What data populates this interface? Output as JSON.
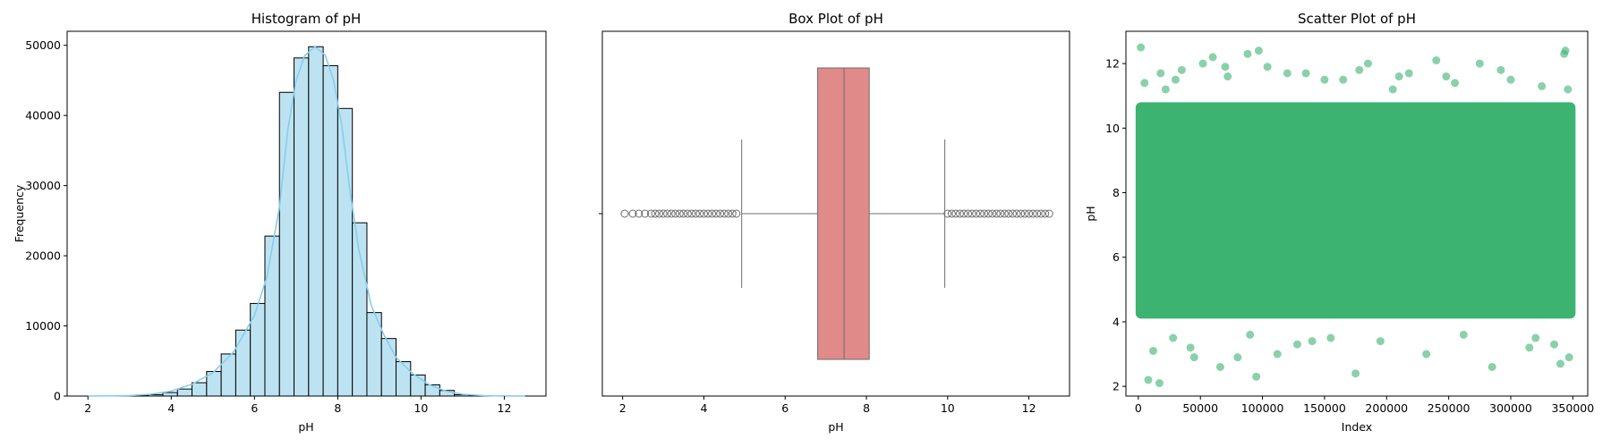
{
  "chart_data": [
    {
      "type": "bar",
      "title": "Histogram of pH",
      "xlabel": "pH",
      "ylabel": "Frequency",
      "xlim": [
        1.5,
        13.0
      ],
      "ylim": [
        0,
        52000
      ],
      "xticks": [
        "2",
        "4",
        "6",
        "8",
        "10",
        "12"
      ],
      "yticks": [
        "0",
        "10000",
        "20000",
        "30000",
        "40000",
        "50000"
      ],
      "bins": [
        {
          "x0": 2.05,
          "x1": 2.4,
          "value": 5
        },
        {
          "x0": 2.4,
          "x1": 2.75,
          "value": 10
        },
        {
          "x0": 2.75,
          "x1": 3.1,
          "value": 20
        },
        {
          "x0": 3.1,
          "x1": 3.45,
          "value": 60
        },
        {
          "x0": 3.45,
          "x1": 3.8,
          "value": 200
        },
        {
          "x0": 3.8,
          "x1": 4.15,
          "value": 500
        },
        {
          "x0": 4.15,
          "x1": 4.5,
          "value": 1000
        },
        {
          "x0": 4.5,
          "x1": 4.85,
          "value": 1900
        },
        {
          "x0": 4.85,
          "x1": 5.2,
          "value": 3500
        },
        {
          "x0": 5.2,
          "x1": 5.55,
          "value": 6000
        },
        {
          "x0": 5.55,
          "x1": 5.9,
          "value": 9400
        },
        {
          "x0": 5.9,
          "x1": 6.25,
          "value": 13200
        },
        {
          "x0": 6.25,
          "x1": 6.6,
          "value": 22800
        },
        {
          "x0": 6.6,
          "x1": 6.95,
          "value": 43300
        },
        {
          "x0": 6.95,
          "x1": 7.3,
          "value": 48200
        },
        {
          "x0": 7.3,
          "x1": 7.65,
          "value": 49800
        },
        {
          "x0": 7.65,
          "x1": 8.0,
          "value": 47100
        },
        {
          "x0": 8.0,
          "x1": 8.35,
          "value": 41000
        },
        {
          "x0": 8.35,
          "x1": 8.7,
          "value": 24700
        },
        {
          "x0": 8.7,
          "x1": 9.05,
          "value": 11900
        },
        {
          "x0": 9.05,
          "x1": 9.4,
          "value": 8200
        },
        {
          "x0": 9.4,
          "x1": 9.75,
          "value": 4900
        },
        {
          "x0": 9.75,
          "x1": 10.1,
          "value": 3000
        },
        {
          "x0": 10.1,
          "x1": 10.45,
          "value": 1600
        },
        {
          "x0": 10.45,
          "x1": 10.8,
          "value": 800
        },
        {
          "x0": 10.8,
          "x1": 11.15,
          "value": 200
        },
        {
          "x0": 11.15,
          "x1": 11.5,
          "value": 60
        },
        {
          "x0": 11.5,
          "x1": 11.85,
          "value": 20
        },
        {
          "x0": 11.85,
          "x1": 12.2,
          "value": 8
        },
        {
          "x0": 12.2,
          "x1": 12.55,
          "value": 4
        }
      ],
      "kde": [
        [
          2.0,
          0
        ],
        [
          3.0,
          60
        ],
        [
          3.5,
          250
        ],
        [
          4.0,
          700
        ],
        [
          4.5,
          1700
        ],
        [
          5.0,
          3300
        ],
        [
          5.5,
          6300
        ],
        [
          6.0,
          11500
        ],
        [
          6.3,
          17000
        ],
        [
          6.6,
          27000
        ],
        [
          6.8,
          38000
        ],
        [
          7.0,
          45000
        ],
        [
          7.2,
          48500
        ],
        [
          7.45,
          49800
        ],
        [
          7.7,
          48600
        ],
        [
          7.9,
          45000
        ],
        [
          8.1,
          38500
        ],
        [
          8.3,
          29000
        ],
        [
          8.5,
          21000
        ],
        [
          8.8,
          13000
        ],
        [
          9.1,
          8800
        ],
        [
          9.4,
          5500
        ],
        [
          9.8,
          3200
        ],
        [
          10.2,
          1600
        ],
        [
          10.6,
          700
        ],
        [
          11.0,
          250
        ],
        [
          11.5,
          70
        ],
        [
          12.0,
          15
        ],
        [
          12.5,
          3
        ]
      ],
      "colors": {
        "bar_fill": "#bde3f2",
        "edge": "#000000",
        "kde": "#87ceeb"
      }
    },
    {
      "type": "box",
      "title": "Box Plot of pH",
      "xlabel": "pH",
      "xlim": [
        1.5,
        13.0
      ],
      "xticks": [
        "2",
        "4",
        "6",
        "8",
        "10",
        "12"
      ],
      "stats": {
        "whisker_low": 4.93,
        "q1": 6.8,
        "median": 7.45,
        "q3": 8.07,
        "whisker_high": 9.93
      },
      "outliers_low": [
        2.05,
        2.25,
        2.4,
        2.55,
        2.7,
        2.8,
        2.9,
        3.0,
        3.1,
        3.2,
        3.3,
        3.4,
        3.5,
        3.6,
        3.7,
        3.8,
        3.9,
        4.0,
        4.1,
        4.2,
        4.3,
        4.4,
        4.5,
        4.6,
        4.7,
        4.8
      ],
      "outliers_high": [
        10.0,
        10.1,
        10.2,
        10.3,
        10.4,
        10.5,
        10.6,
        10.7,
        10.8,
        10.9,
        11.0,
        11.1,
        11.2,
        11.3,
        11.4,
        11.5,
        11.6,
        11.7,
        11.8,
        11.9,
        12.0,
        12.1,
        12.2,
        12.3,
        12.4,
        12.5
      ],
      "colors": {
        "box_fill": "#e08a89",
        "line": "#6d6d6d"
      }
    },
    {
      "type": "scatter",
      "title": "Scatter Plot of pH",
      "xlabel": "Index",
      "ylabel": "pH",
      "xlim": [
        -10000,
        362000
      ],
      "ylim": [
        1.7,
        13.0
      ],
      "xticks": [
        "0",
        "50000",
        "100000",
        "150000",
        "200000",
        "250000",
        "300000",
        "350000"
      ],
      "yticks": [
        "2",
        "4",
        "6",
        "8",
        "10",
        "12"
      ],
      "band": {
        "x0": 0,
        "x1": 350000,
        "y0": 4.1,
        "y1": 10.8
      },
      "points": [
        [
          2000,
          12.5
        ],
        [
          5000,
          11.4
        ],
        [
          8000,
          2.2
        ],
        [
          17000,
          2.1
        ],
        [
          12000,
          3.1
        ],
        [
          22000,
          11.2
        ],
        [
          28000,
          3.5
        ],
        [
          35000,
          11.8
        ],
        [
          45000,
          2.9
        ],
        [
          52000,
          12.0
        ],
        [
          60000,
          12.2
        ],
        [
          66000,
          2.6
        ],
        [
          72000,
          11.6
        ],
        [
          80000,
          2.9
        ],
        [
          88000,
          12.3
        ],
        [
          95000,
          2.3
        ],
        [
          97000,
          12.4
        ],
        [
          104000,
          11.9
        ],
        [
          112000,
          3.0
        ],
        [
          120000,
          11.7
        ],
        [
          135000,
          11.7
        ],
        [
          140000,
          3.4
        ],
        [
          150000,
          11.5
        ],
        [
          165000,
          11.5
        ],
        [
          175000,
          2.4
        ],
        [
          185000,
          12.0
        ],
        [
          195000,
          3.4
        ],
        [
          205000,
          11.2
        ],
        [
          218000,
          11.7
        ],
        [
          232000,
          3.0
        ],
        [
          248000,
          11.6
        ],
        [
          262000,
          3.6
        ],
        [
          275000,
          12.0
        ],
        [
          285000,
          2.6
        ],
        [
          292000,
          11.8
        ],
        [
          300000,
          11.5
        ],
        [
          315000,
          3.2
        ],
        [
          335000,
          3.3
        ],
        [
          340000,
          2.7
        ],
        [
          344000,
          12.4
        ],
        [
          346000,
          11.2
        ],
        [
          347000,
          2.9
        ],
        [
          343000,
          12.3
        ],
        [
          30000,
          11.5
        ],
        [
          70000,
          11.9
        ],
        [
          90000,
          3.6
        ],
        [
          155000,
          3.5
        ],
        [
          210000,
          11.6
        ],
        [
          240000,
          12.1
        ],
        [
          325000,
          11.3
        ],
        [
          18000,
          11.7
        ],
        [
          42000,
          3.2
        ],
        [
          128000,
          3.3
        ],
        [
          178000,
          11.8
        ],
        [
          255000,
          11.4
        ],
        [
          320000,
          3.5
        ]
      ],
      "colors": {
        "point": "#3cb371"
      }
    }
  ]
}
